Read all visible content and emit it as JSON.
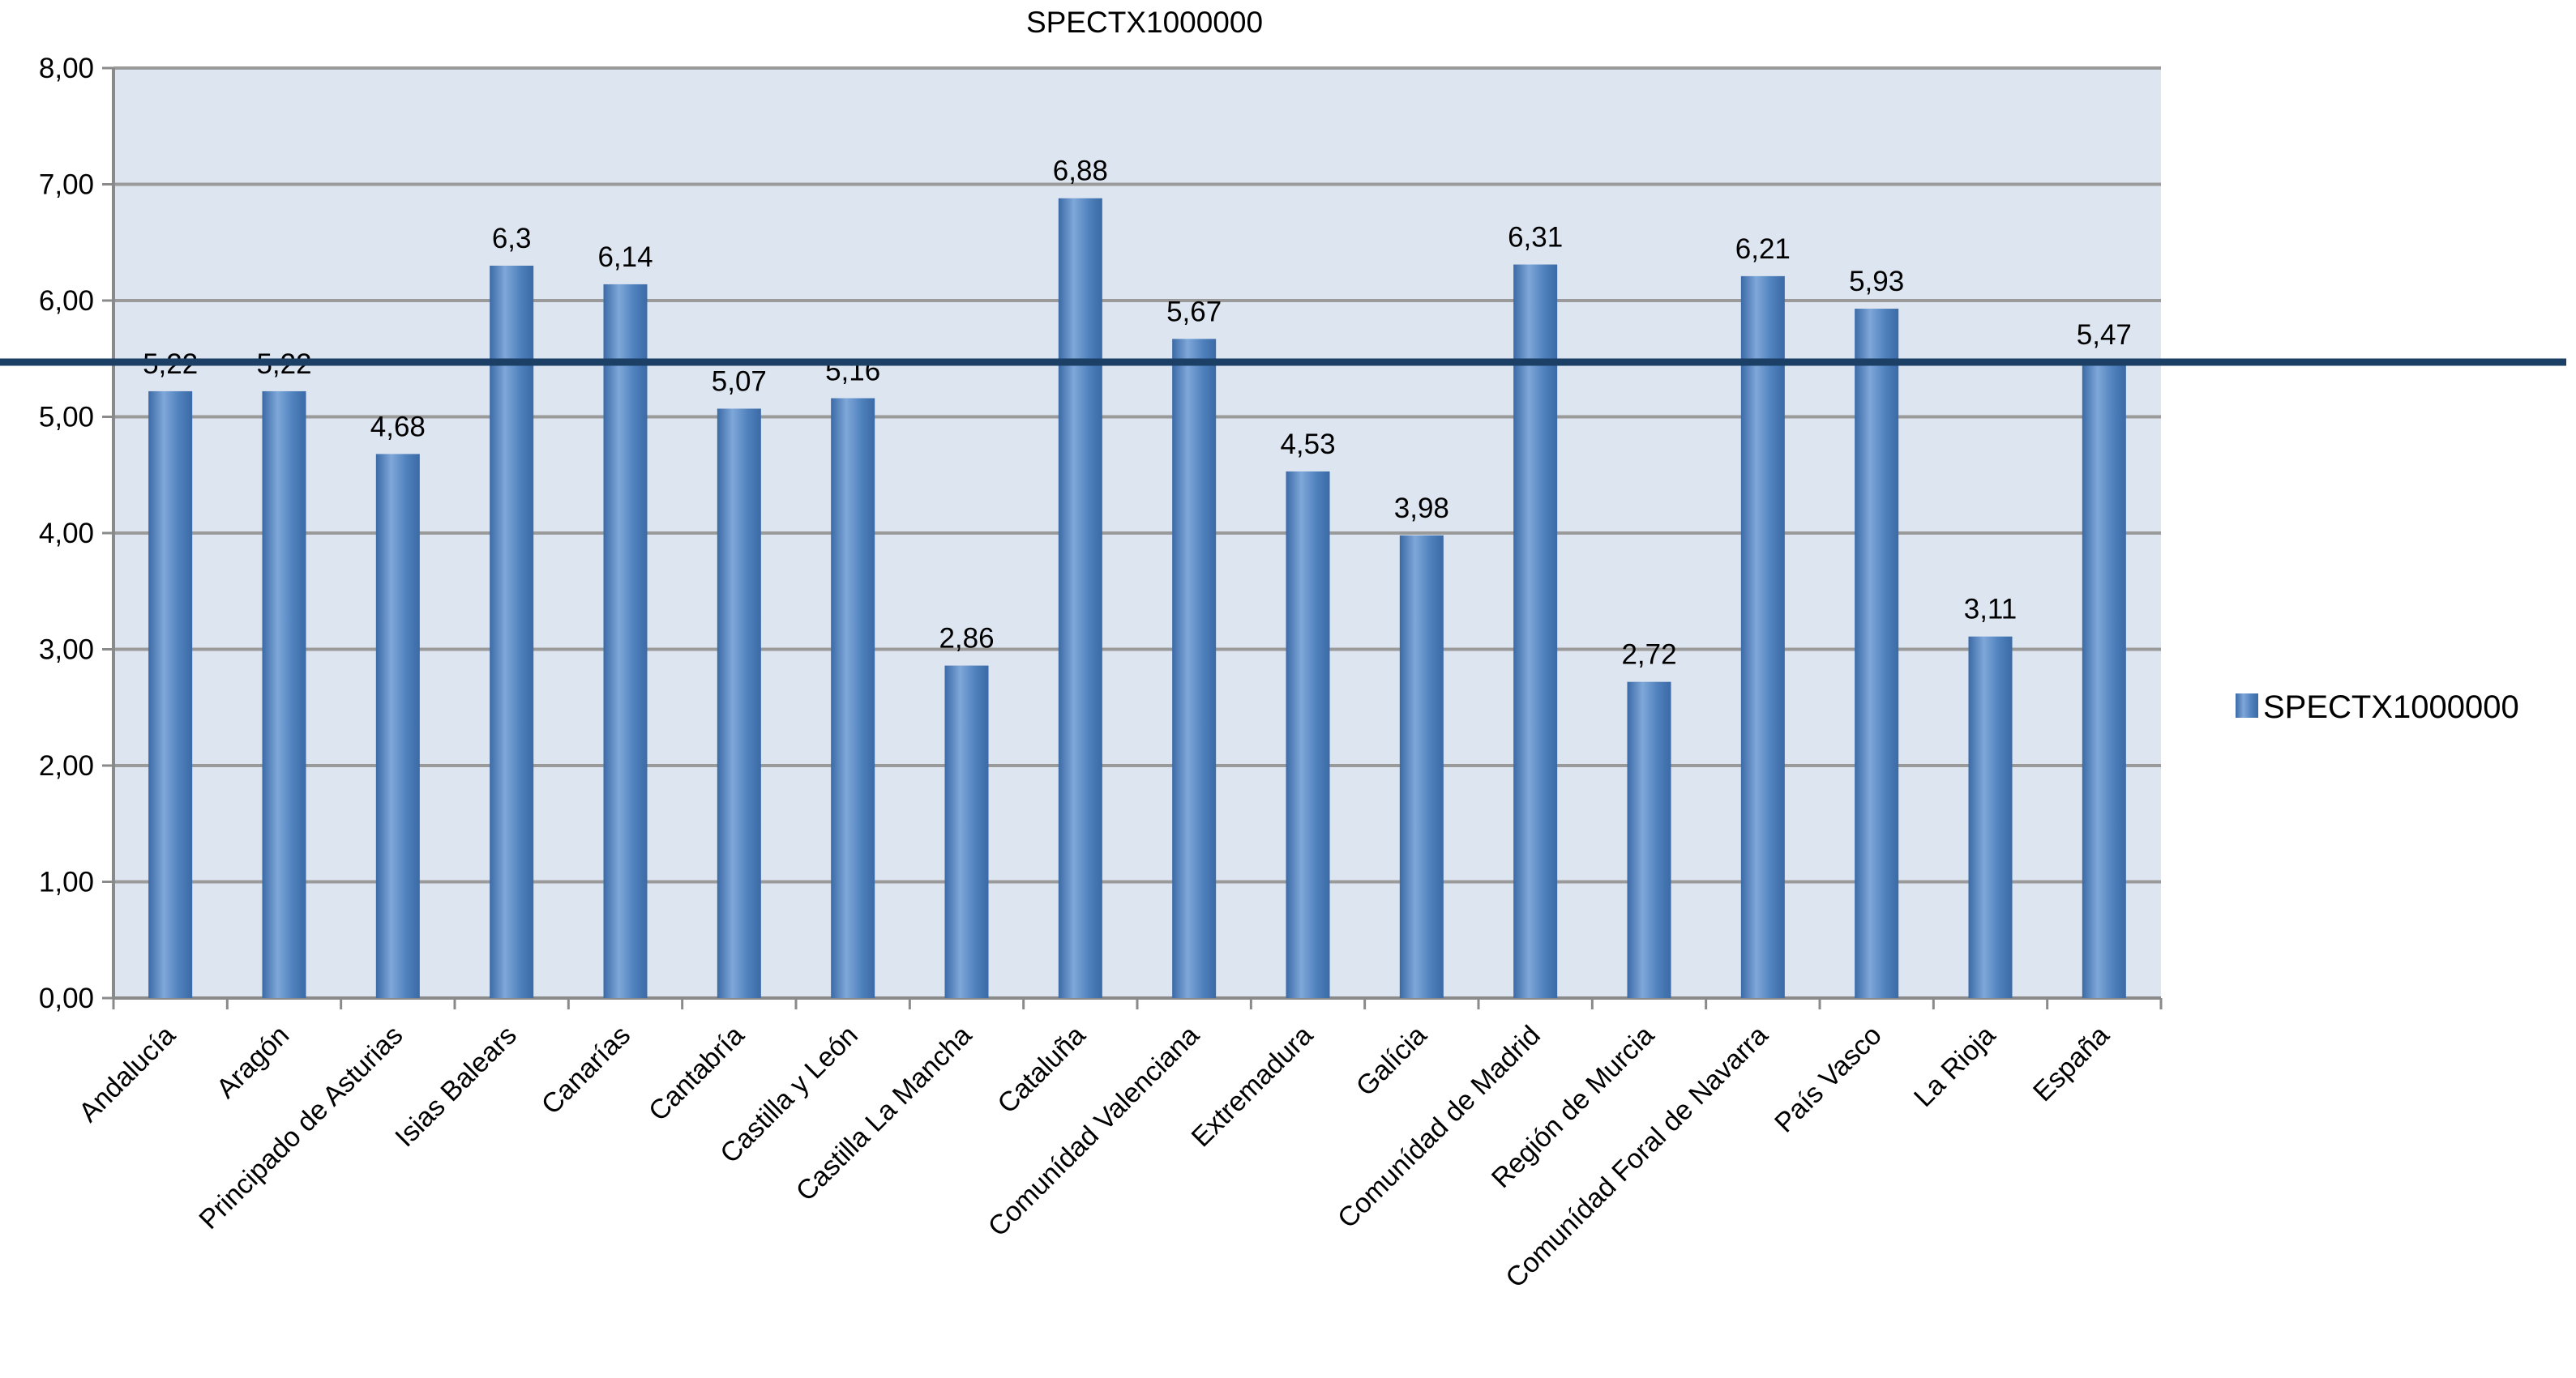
{
  "chart_data": {
    "type": "bar",
    "title": "SPECTX1000000",
    "xlabel": "",
    "ylabel": "",
    "ylim": [
      0,
      8
    ],
    "yticks": [
      "0,00",
      "1,00",
      "2,00",
      "3,00",
      "4,00",
      "5,00",
      "6,00",
      "7,00",
      "8,00"
    ],
    "categories": [
      "Andalucía",
      "Aragón",
      "Principado de Asturias",
      "Isias Balears",
      "Canarías",
      "Cantabría",
      "Castilla y León",
      "Castilla La Mancha",
      "Cataluña",
      "Comunídad Valenciana",
      "Extremadura",
      "Galícia",
      "Comunídad de Madrid",
      "Región de Murcia",
      "Comunídad Foral de Navarra",
      "País Vasco",
      "La Rioja",
      "España"
    ],
    "series": [
      {
        "name": "SPECTX1000000",
        "values": [
          5.22,
          5.22,
          4.68,
          6.3,
          6.14,
          5.07,
          5.16,
          2.86,
          6.88,
          5.67,
          4.53,
          3.98,
          6.31,
          2.72,
          6.21,
          5.93,
          3.11,
          5.47
        ],
        "labels": [
          "5,22",
          "5,22",
          "4,68",
          "6,3",
          "6,14",
          "5,07",
          "5,16",
          "2,86",
          "6,88",
          "5,67",
          "4,53",
          "3,98",
          "6,31",
          "2,72",
          "6,21",
          "5,93",
          "3,11",
          "5,47"
        ]
      }
    ],
    "reference_line_value": 5.47,
    "grid": true,
    "legend": "right",
    "colors": {
      "bar": "#4f81bd",
      "bar_highlight": "#7fa7d9",
      "bar_shadow": "#3b6aa6",
      "plot_bg": "#dde5f0",
      "grid": "#9a9a9a",
      "axis": "#8a8a8a",
      "reference_line": "#1c3f66"
    }
  }
}
